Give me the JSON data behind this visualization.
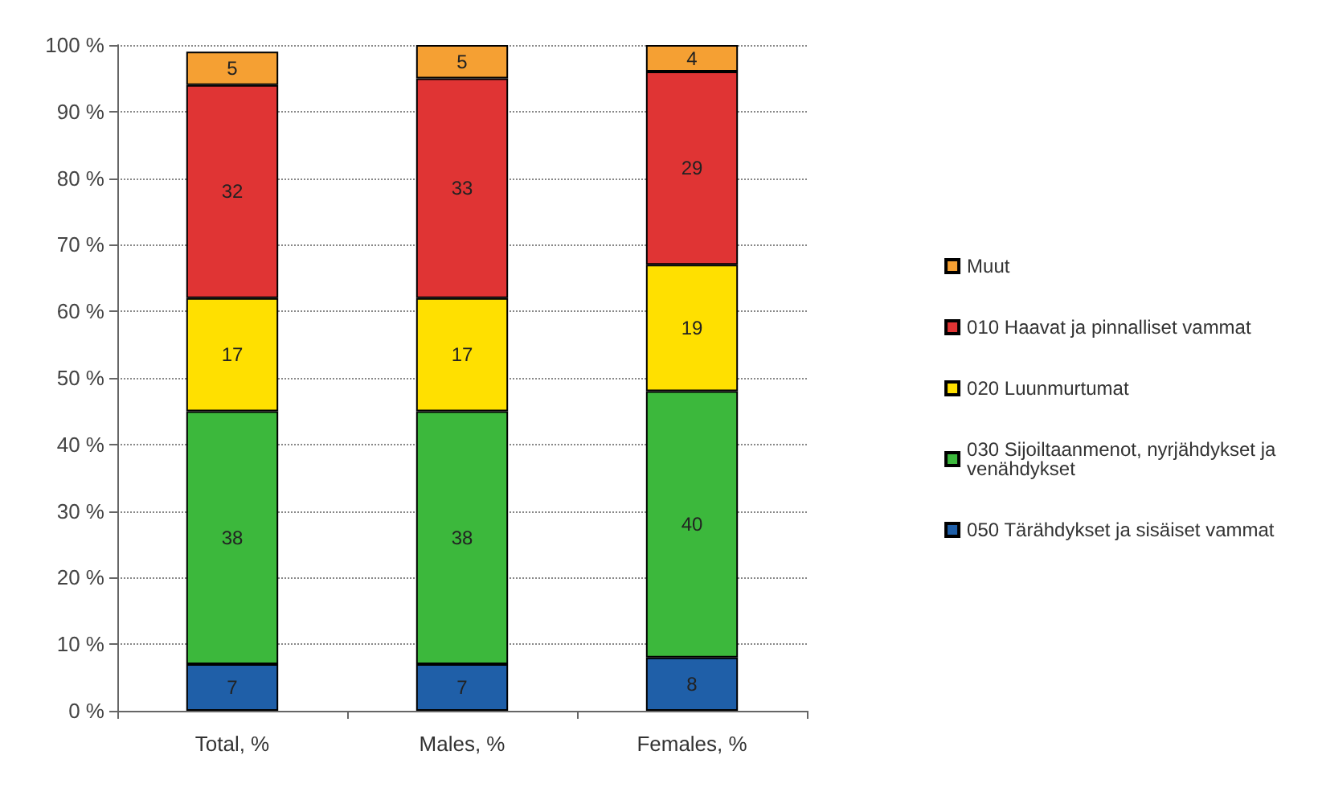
{
  "chart_data": {
    "type": "bar",
    "stacked": true,
    "categories": [
      "Total, %",
      "Males, %",
      "Females, %"
    ],
    "series": [
      {
        "name": "050 Tärähdykset ja sisäiset vammat",
        "color": "#1f5fa8",
        "values": [
          7,
          7,
          8
        ]
      },
      {
        "name": "030 Sijoiltaanmenot, nyrjähdykset ja venähdykset",
        "color": "#3cb83c",
        "values": [
          38,
          38,
          40
        ]
      },
      {
        "name": "020 Luunmurtumat",
        "color": "#ffe000",
        "values": [
          17,
          17,
          19
        ]
      },
      {
        "name": "010 Haavat ja pinnalliset vammat",
        "color": "#e03434",
        "values": [
          32,
          33,
          29
        ]
      },
      {
        "name": "Muut",
        "color": "#f5a033",
        "values": [
          5,
          5,
          4
        ]
      }
    ],
    "ylim": [
      0,
      100
    ],
    "yticks": [
      {
        "value": 0,
        "label": "0 %"
      },
      {
        "value": 10,
        "label": "10 %"
      },
      {
        "value": 20,
        "label": "20 %"
      },
      {
        "value": 30,
        "label": "30 %"
      },
      {
        "value": 40,
        "label": "40 %"
      },
      {
        "value": 50,
        "label": "50 %"
      },
      {
        "value": 60,
        "label": "60 %"
      },
      {
        "value": 70,
        "label": "70 %"
      },
      {
        "value": 80,
        "label": "80 %"
      },
      {
        "value": 90,
        "label": "90 %"
      },
      {
        "value": 100,
        "label": "100 %"
      }
    ],
    "grid": "y",
    "legend": "right",
    "data_labels": true
  }
}
